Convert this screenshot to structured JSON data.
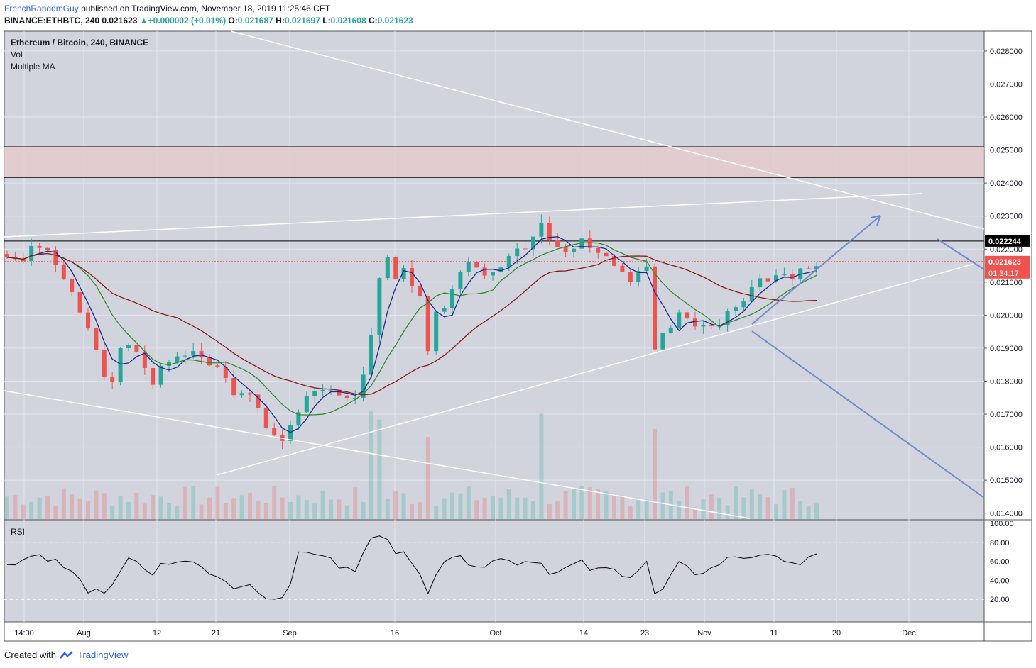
{
  "header": {
    "username": "FrenchRandomGuy",
    "published_text": "published on TradingView.com, November 18, 2019 11:25:46 CET",
    "symbol": "BINANCE:ETHBTC, 240",
    "last_price": "0.021623",
    "change_arrow": "▲",
    "change": "+0.000002 (+0.01%)",
    "o_label": "O:",
    "o_value": "0.021687",
    "h_label": "H:",
    "h_value": "0.021697",
    "l_label": "L:",
    "l_value": "0.021608",
    "c_label": "C:",
    "c_value": "0.021623"
  },
  "legend": {
    "title": "Ethereum / Bitcoin, 240, BINANCE",
    "vol": "Vol",
    "ma": "Multiple MA",
    "rsi": "RSI"
  },
  "footer": {
    "created_with": "Created with",
    "brand": "TradingView"
  },
  "colors": {
    "background": "#d1d4dc",
    "candle_up": "#26a69a",
    "candle_down": "#ef5350",
    "ma_fast": "#1f2a8a",
    "ma_mid": "#2e8b2e",
    "ma_slow": "#8b1a1a",
    "trendline": "#ffffff",
    "arrow": "#6f8bcf",
    "price_tag": "#ef5350",
    "level_tag": "#000000"
  },
  "chart_data": {
    "type": "candlestick",
    "title": "Ethereum / Bitcoin, 240, BINANCE",
    "y_ticks": [
      "0.028000",
      "0.027000",
      "0.026000",
      "0.025000",
      "0.024000",
      "0.023000",
      "0.022000",
      "0.021000",
      "0.020000",
      "0.019000",
      "0.018000",
      "0.017000",
      "0.016000",
      "0.015000",
      "0.014000"
    ],
    "y_range": [
      0.0138,
      0.0286
    ],
    "x_ticks": [
      "14:00",
      "Aug",
      "12",
      "21",
      "Sep",
      "16",
      "Oct",
      "14",
      "23",
      "Nov",
      "11",
      "20",
      "Dec"
    ],
    "price_tags": {
      "level": "0.022244",
      "current": "0.021623",
      "countdown": "01:34:17"
    },
    "resistance_zone": [
      0.02417,
      0.0251
    ],
    "horizontal_level": 0.022244,
    "close_profile": [
      [
        0,
        0.0217
      ],
      [
        2,
        0.0216
      ],
      [
        3.5,
        0.0222
      ],
      [
        5,
        0.0219
      ],
      [
        6,
        0.0216
      ],
      [
        8,
        0.0208
      ],
      [
        10,
        0.0196
      ],
      [
        11.5,
        0.0185
      ],
      [
        12.5,
        0.0176
      ],
      [
        14,
        0.019
      ],
      [
        15.5,
        0.0193
      ],
      [
        16.5,
        0.0186
      ],
      [
        18,
        0.018
      ],
      [
        19,
        0.0185
      ],
      [
        21,
        0.0188
      ],
      [
        22,
        0.0187
      ],
      [
        23,
        0.019
      ],
      [
        24,
        0.0188
      ],
      [
        25,
        0.0186
      ],
      [
        27,
        0.0182
      ],
      [
        28,
        0.0176
      ],
      [
        29.5,
        0.0178
      ],
      [
        31,
        0.0172
      ],
      [
        32,
        0.0167
      ],
      [
        33,
        0.0163
      ],
      [
        34,
        0.0162
      ],
      [
        35,
        0.0166
      ],
      [
        36,
        0.0171
      ],
      [
        37.5,
        0.0176
      ],
      [
        39,
        0.0177
      ],
      [
        40,
        0.0178
      ],
      [
        41,
        0.0176
      ],
      [
        42,
        0.0176
      ],
      [
        43,
        0.0174
      ],
      [
        44,
        0.0183
      ],
      [
        45,
        0.0195
      ],
      [
        46,
        0.0212
      ],
      [
        47,
        0.0218
      ],
      [
        48,
        0.0212
      ],
      [
        49,
        0.0214
      ],
      [
        50,
        0.0209
      ],
      [
        51,
        0.0206
      ],
      [
        52,
        0.0189
      ],
      [
        53,
        0.02
      ],
      [
        54,
        0.0202
      ],
      [
        55,
        0.0208
      ],
      [
        56,
        0.0214
      ],
      [
        57,
        0.0215
      ],
      [
        58,
        0.0214
      ],
      [
        59,
        0.0212
      ],
      [
        60,
        0.0212
      ],
      [
        61,
        0.0214
      ],
      [
        62,
        0.0218
      ],
      [
        63,
        0.0219
      ],
      [
        64,
        0.0219
      ],
      [
        65,
        0.0224
      ],
      [
        66,
        0.0228
      ],
      [
        67,
        0.0222
      ],
      [
        68,
        0.022
      ],
      [
        69,
        0.0218
      ],
      [
        70,
        0.022
      ],
      [
        71,
        0.0222
      ],
      [
        72,
        0.022
      ],
      [
        73,
        0.0218
      ],
      [
        74,
        0.0218
      ],
      [
        75,
        0.0216
      ],
      [
        76,
        0.0212
      ],
      [
        77,
        0.021
      ],
      [
        78,
        0.0213
      ],
      [
        79,
        0.0215
      ],
      [
        80,
        0.0189
      ],
      [
        81,
        0.0194
      ],
      [
        82,
        0.0196
      ],
      [
        83,
        0.0201
      ],
      [
        84,
        0.0198
      ],
      [
        85,
        0.0196
      ],
      [
        86,
        0.0198
      ],
      [
        87,
        0.0197
      ],
      [
        88,
        0.0197
      ],
      [
        89,
        0.02
      ],
      [
        90,
        0.0202
      ],
      [
        91,
        0.0205
      ],
      [
        92,
        0.0208
      ],
      [
        93,
        0.0212
      ],
      [
        94,
        0.0211
      ],
      [
        95,
        0.0212
      ],
      [
        96,
        0.0213
      ],
      [
        97,
        0.0212
      ],
      [
        98,
        0.0213
      ],
      [
        99,
        0.0214
      ],
      [
        100,
        0.0216
      ],
      [
        101,
        0.0216
      ]
    ],
    "rsi": {
      "ticks": [
        "100.00",
        "80.00",
        "60.00",
        "40.00",
        "20.00"
      ],
      "range": [
        0,
        100
      ],
      "guides": [
        80,
        20
      ],
      "profile": [
        [
          0,
          58
        ],
        [
          2,
          62
        ],
        [
          3.5,
          68
        ],
        [
          5,
          64
        ],
        [
          6,
          60
        ],
        [
          8,
          48
        ],
        [
          10,
          30
        ],
        [
          11.5,
          26
        ],
        [
          12.5,
          22
        ],
        [
          14,
          52
        ],
        [
          15.5,
          72
        ],
        [
          16.5,
          50
        ],
        [
          18,
          44
        ],
        [
          19,
          55
        ],
        [
          21,
          60
        ],
        [
          22,
          58
        ],
        [
          23,
          62
        ],
        [
          24,
          52
        ],
        [
          25,
          46
        ],
        [
          27,
          40
        ],
        [
          28,
          30
        ],
        [
          29.5,
          40
        ],
        [
          31,
          28
        ],
        [
          32,
          24
        ],
        [
          33,
          20
        ],
        [
          34,
          24
        ],
        [
          35,
          40
        ],
        [
          36,
          66
        ],
        [
          37.5,
          70
        ],
        [
          39,
          68
        ],
        [
          40,
          60
        ],
        [
          41,
          55
        ],
        [
          42,
          52
        ],
        [
          43,
          48
        ],
        [
          44,
          70
        ],
        [
          45,
          82
        ],
        [
          46,
          90
        ],
        [
          47,
          86
        ],
        [
          48,
          72
        ],
        [
          49,
          68
        ],
        [
          50,
          55
        ],
        [
          51,
          45
        ],
        [
          52,
          30
        ],
        [
          53,
          50
        ],
        [
          54,
          62
        ],
        [
          55,
          66
        ],
        [
          56,
          62
        ],
        [
          57,
          60
        ],
        [
          58,
          58
        ],
        [
          59,
          56
        ],
        [
          60,
          60
        ],
        [
          61,
          62
        ],
        [
          62,
          64
        ],
        [
          63,
          58
        ],
        [
          64,
          60
        ],
        [
          65,
          62
        ],
        [
          66,
          58
        ],
        [
          67,
          50
        ],
        [
          68,
          48
        ],
        [
          69,
          52
        ],
        [
          70,
          56
        ],
        [
          71,
          58
        ],
        [
          72,
          52
        ],
        [
          73,
          50
        ],
        [
          74,
          52
        ],
        [
          75,
          50
        ],
        [
          76,
          48
        ],
        [
          77,
          46
        ],
        [
          78,
          52
        ],
        [
          79,
          60
        ],
        [
          80,
          24
        ],
        [
          81,
          30
        ],
        [
          82,
          44
        ],
        [
          83,
          56
        ],
        [
          84,
          52
        ],
        [
          85,
          48
        ],
        [
          86,
          50
        ],
        [
          87,
          52
        ],
        [
          88,
          58
        ],
        [
          89,
          62
        ],
        [
          90,
          66
        ],
        [
          91,
          64
        ],
        [
          92,
          66
        ],
        [
          93,
          68
        ],
        [
          94,
          64
        ],
        [
          95,
          62
        ],
        [
          96,
          64
        ],
        [
          97,
          60
        ],
        [
          98,
          58
        ],
        [
          99,
          62
        ],
        [
          100,
          64
        ],
        [
          101,
          63
        ]
      ]
    },
    "grid": true
  }
}
